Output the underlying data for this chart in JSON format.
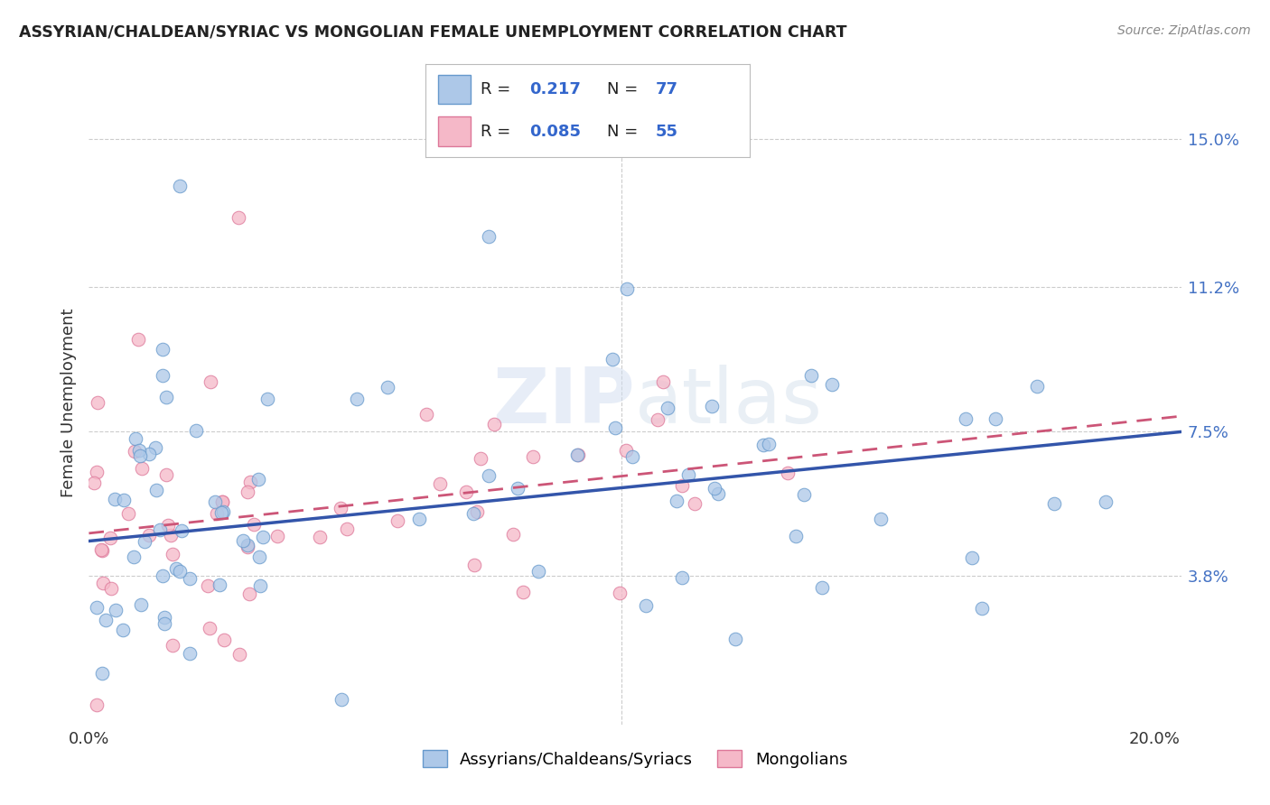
{
  "title": "ASSYRIAN/CHALDEAN/SYRIAC VS MONGOLIAN FEMALE UNEMPLOYMENT CORRELATION CHART",
  "source": "Source: ZipAtlas.com",
  "ylabel": "Female Unemployment",
  "xlim": [
    0.0,
    0.205
  ],
  "ylim": [
    0.0,
    0.165
  ],
  "xtick_positions": [
    0.0,
    0.1,
    0.2
  ],
  "xtick_labels": [
    "0.0%",
    "",
    "20.0%"
  ],
  "ytick_positions": [
    0.038,
    0.075,
    0.112,
    0.15
  ],
  "ytick_labels": [
    "3.8%",
    "7.5%",
    "11.2%",
    "15.0%"
  ],
  "blue_R": 0.217,
  "blue_N": 77,
  "pink_R": 0.085,
  "pink_N": 55,
  "blue_color": "#adc8e8",
  "pink_color": "#f5b8c8",
  "blue_edge": "#6699cc",
  "pink_edge": "#dd7799",
  "trend_blue": "#3355aa",
  "trend_pink": "#cc5577",
  "legend_blue_label": "Assyrians/Chaldeans/Syriacs",
  "legend_pink_label": "Mongolians",
  "watermark": "ZIPatlas",
  "background_color": "#ffffff",
  "grid_color": "#cccccc",
  "blue_trend_x0": 0.0,
  "blue_trend_y0": 0.047,
  "blue_trend_x1": 0.2,
  "blue_trend_y1": 0.075,
  "pink_trend_x0": 0.0,
  "pink_trend_y0": 0.049,
  "pink_trend_x1": 0.2,
  "pink_trend_y1": 0.079
}
